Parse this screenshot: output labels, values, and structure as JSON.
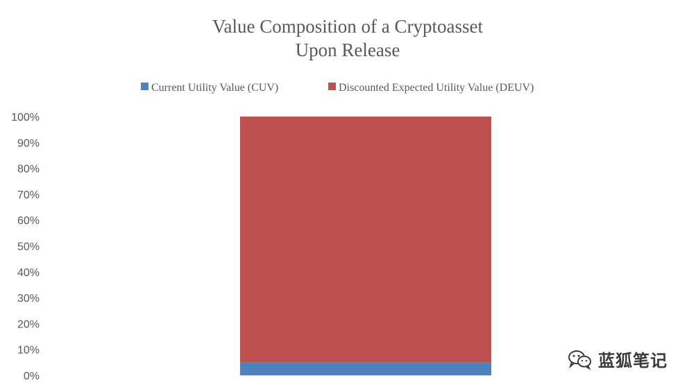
{
  "chart_data": {
    "type": "bar",
    "stacked": true,
    "title": [
      "Value Composition of a Cryptoasset",
      "Upon Release"
    ],
    "categories": [
      ""
    ],
    "series": [
      {
        "name": "Current Utility Value (CUV)",
        "values": [
          5
        ],
        "color": "#4f81bd"
      },
      {
        "name": "Discounted Expected Utility Value (DEUV)",
        "values": [
          95
        ],
        "color": "#c0504d"
      }
    ],
    "ylim": [
      0,
      100
    ],
    "yticks": [
      "0%",
      "10%",
      "20%",
      "30%",
      "40%",
      "50%",
      "60%",
      "70%",
      "80%",
      "90%",
      "100%"
    ],
    "grid": false,
    "legend_position": "top"
  },
  "watermark": {
    "text": "蓝狐笔记",
    "icon": "wechat-icon"
  }
}
